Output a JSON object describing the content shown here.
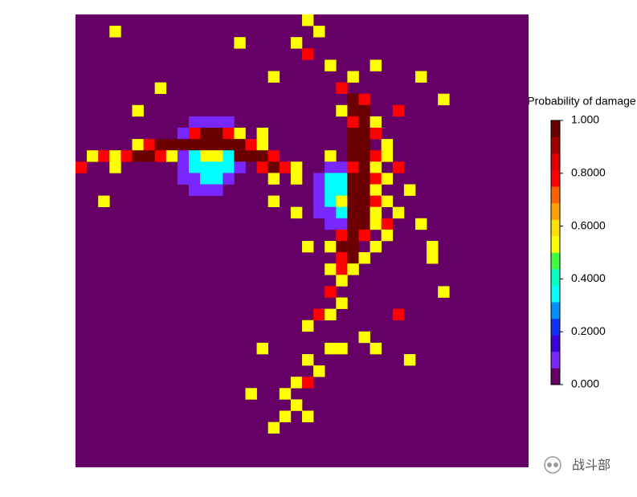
{
  "chart_data": {
    "type": "heatmap",
    "colorbar_title": "Probability of damage",
    "grid_size": [
      40,
      40
    ],
    "zlim": [
      0,
      1
    ],
    "zticks": [
      {
        "value": 0,
        "label": "0.000"
      },
      {
        "value": 0.2,
        "label": "0.2000"
      },
      {
        "value": 0.4,
        "label": "0.4000"
      },
      {
        "value": 0.6,
        "label": "0.6000"
      },
      {
        "value": 0.8,
        "label": "0.8000"
      },
      {
        "value": 1,
        "label": "1.000"
      }
    ],
    "colors": [
      "#660066",
      "#7828ff",
      "#3c00d8",
      "#1030ff",
      "#0090ff",
      "#00ffff",
      "#00ffc0",
      "#40ff40",
      "#ffff00",
      "#ffe000",
      "#ffa000",
      "#ff6000",
      "#ff0000",
      "#e00000",
      "#a00000",
      "#6a0000"
    ],
    "cells": [
      [
        10,
        9,
        0.12
      ],
      [
        11,
        9,
        0.12
      ],
      [
        12,
        9,
        0.12
      ],
      [
        13,
        9,
        0.12
      ],
      [
        9,
        10,
        0.12
      ],
      [
        10,
        10,
        0.75
      ],
      [
        11,
        10,
        0.95
      ],
      [
        12,
        10,
        0.95
      ],
      [
        13,
        10,
        0.75
      ],
      [
        14,
        10,
        0.5
      ],
      [
        5,
        11,
        0.5
      ],
      [
        6,
        11,
        0.75
      ],
      [
        7,
        11,
        0.95
      ],
      [
        8,
        11,
        0.95
      ],
      [
        9,
        11,
        0.95
      ],
      [
        10,
        11,
        0.95
      ],
      [
        11,
        11,
        0.95
      ],
      [
        12,
        11,
        0.95
      ],
      [
        13,
        11,
        0.95
      ],
      [
        14,
        11,
        0.95
      ],
      [
        15,
        11,
        0.75
      ],
      [
        16,
        11,
        0.5
      ],
      [
        1,
        12,
        0.5
      ],
      [
        2,
        12,
        0.75
      ],
      [
        3,
        12,
        0.5
      ],
      [
        4,
        12,
        0.75
      ],
      [
        5,
        12,
        0.95
      ],
      [
        6,
        12,
        0.95
      ],
      [
        7,
        12,
        0.75
      ],
      [
        8,
        12,
        0.5
      ],
      [
        9,
        12,
        0.12
      ],
      [
        10,
        12,
        0.35
      ],
      [
        11,
        12,
        0.5
      ],
      [
        12,
        12,
        0.5
      ],
      [
        13,
        12,
        0.35
      ],
      [
        14,
        12,
        0.95
      ],
      [
        15,
        12,
        0.95
      ],
      [
        16,
        12,
        0.95
      ],
      [
        17,
        12,
        0.75
      ],
      [
        0,
        13,
        0.75
      ],
      [
        3,
        13,
        0.5
      ],
      [
        9,
        13,
        0.12
      ],
      [
        10,
        13,
        0.35
      ],
      [
        11,
        13,
        0.35
      ],
      [
        12,
        13,
        0.35
      ],
      [
        13,
        13,
        0.35
      ],
      [
        14,
        13,
        0.12
      ],
      [
        16,
        13,
        0.75
      ],
      [
        17,
        13,
        0.95
      ],
      [
        18,
        13,
        0.75
      ],
      [
        19,
        13,
        0.5
      ],
      [
        9,
        14,
        0.12
      ],
      [
        10,
        14,
        0.12
      ],
      [
        11,
        14,
        0.35
      ],
      [
        12,
        14,
        0.35
      ],
      [
        13,
        14,
        0.12
      ],
      [
        17,
        14,
        0.5
      ],
      [
        19,
        14,
        0.5
      ],
      [
        10,
        15,
        0.12
      ],
      [
        11,
        15,
        0.12
      ],
      [
        12,
        15,
        0.12
      ],
      [
        20,
        0,
        0.5
      ],
      [
        21,
        1,
        0.5
      ],
      [
        20,
        3,
        0.75
      ],
      [
        22,
        4,
        0.5
      ],
      [
        24,
        5,
        0.5
      ],
      [
        23,
        6,
        0.75
      ],
      [
        24,
        7,
        0.95
      ],
      [
        25,
        7,
        0.75
      ],
      [
        23,
        8,
        0.5
      ],
      [
        24,
        8,
        0.95
      ],
      [
        25,
        8,
        0.95
      ],
      [
        24,
        9,
        0.75
      ],
      [
        25,
        9,
        0.95
      ],
      [
        26,
        9,
        0.5
      ],
      [
        24,
        10,
        0.95
      ],
      [
        25,
        10,
        0.95
      ],
      [
        26,
        10,
        0.75
      ],
      [
        27,
        11,
        0.5
      ],
      [
        24,
        11,
        0.95
      ],
      [
        25,
        11,
        0.95
      ],
      [
        22,
        12,
        0.5
      ],
      [
        24,
        12,
        0.95
      ],
      [
        25,
        12,
        0.95
      ],
      [
        26,
        12,
        0.75
      ],
      [
        27,
        12,
        0.5
      ],
      [
        22,
        13,
        0.12
      ],
      [
        23,
        13,
        0.12
      ],
      [
        24,
        13,
        0.75
      ],
      [
        25,
        13,
        0.95
      ],
      [
        26,
        13,
        0.5
      ],
      [
        28,
        13,
        0.75
      ],
      [
        21,
        14,
        0.12
      ],
      [
        22,
        14,
        0.35
      ],
      [
        23,
        14,
        0.35
      ],
      [
        24,
        14,
        0.95
      ],
      [
        25,
        14,
        0.95
      ],
      [
        26,
        14,
        0.75
      ],
      [
        27,
        14,
        0.5
      ],
      [
        21,
        15,
        0.12
      ],
      [
        22,
        15,
        0.35
      ],
      [
        23,
        15,
        0.35
      ],
      [
        24,
        15,
        0.95
      ],
      [
        25,
        15,
        0.95
      ],
      [
        26,
        15,
        0.5
      ],
      [
        29,
        15,
        0.5
      ],
      [
        21,
        16,
        0.12
      ],
      [
        22,
        16,
        0.35
      ],
      [
        23,
        16,
        0.5
      ],
      [
        24,
        16,
        0.95
      ],
      [
        25,
        16,
        0.95
      ],
      [
        26,
        16,
        0.75
      ],
      [
        27,
        16,
        0.5
      ],
      [
        21,
        17,
        0.12
      ],
      [
        22,
        17,
        0.12
      ],
      [
        23,
        17,
        0.35
      ],
      [
        24,
        17,
        0.95
      ],
      [
        25,
        17,
        0.95
      ],
      [
        26,
        17,
        0.5
      ],
      [
        28,
        17,
        0.5
      ],
      [
        22,
        18,
        0.12
      ],
      [
        23,
        18,
        0.12
      ],
      [
        24,
        18,
        0.95
      ],
      [
        25,
        18,
        0.95
      ],
      [
        26,
        18,
        0.5
      ],
      [
        27,
        18,
        0.75
      ],
      [
        23,
        19,
        0.75
      ],
      [
        24,
        19,
        0.95
      ],
      [
        25,
        19,
        0.75
      ],
      [
        27,
        19,
        0.5
      ],
      [
        22,
        20,
        0.5
      ],
      [
        23,
        20,
        0.95
      ],
      [
        24,
        20,
        0.95
      ],
      [
        26,
        20,
        0.5
      ],
      [
        23,
        21,
        0.75
      ],
      [
        24,
        21,
        0.95
      ],
      [
        25,
        21,
        0.5
      ],
      [
        22,
        22,
        0.5
      ],
      [
        23,
        22,
        0.75
      ],
      [
        24,
        22,
        0.5
      ],
      [
        23,
        23,
        0.5
      ],
      [
        22,
        24,
        0.75
      ],
      [
        23,
        25,
        0.5
      ],
      [
        21,
        26,
        0.75
      ],
      [
        22,
        26,
        0.5
      ],
      [
        20,
        27,
        0.5
      ],
      [
        22,
        29,
        0.5
      ],
      [
        20,
        30,
        0.5
      ],
      [
        21,
        31,
        0.5
      ],
      [
        19,
        32,
        0.5
      ],
      [
        20,
        32,
        0.75
      ],
      [
        18,
        33,
        0.5
      ],
      [
        19,
        34,
        0.5
      ],
      [
        20,
        35,
        0.5
      ],
      [
        18,
        35,
        0.5
      ],
      [
        17,
        36,
        0.5
      ],
      [
        3,
        1,
        0.5
      ],
      [
        14,
        2,
        0.5
      ],
      [
        19,
        2,
        0.5
      ],
      [
        7,
        6,
        0.5
      ],
      [
        5,
        8,
        0.5
      ],
      [
        26,
        4,
        0.5
      ],
      [
        30,
        5,
        0.5
      ],
      [
        32,
        7,
        0.5
      ],
      [
        28,
        8,
        0.75
      ],
      [
        16,
        10,
        0.5
      ],
      [
        17,
        5,
        0.5
      ],
      [
        2,
        16,
        0.5
      ],
      [
        17,
        16,
        0.5
      ],
      [
        20,
        20,
        0.5
      ],
      [
        30,
        18,
        0.5
      ],
      [
        31,
        21,
        0.5
      ],
      [
        32,
        24,
        0.5
      ],
      [
        28,
        26,
        0.75
      ],
      [
        26,
        29,
        0.5
      ],
      [
        16,
        29,
        0.5
      ],
      [
        29,
        30,
        0.5
      ],
      [
        23,
        29,
        0.5
      ],
      [
        15,
        33,
        0.5
      ],
      [
        25,
        28,
        0.5
      ],
      [
        31,
        20,
        0.5
      ],
      [
        19,
        17,
        0.5
      ]
    ]
  },
  "watermark": "战斗部"
}
